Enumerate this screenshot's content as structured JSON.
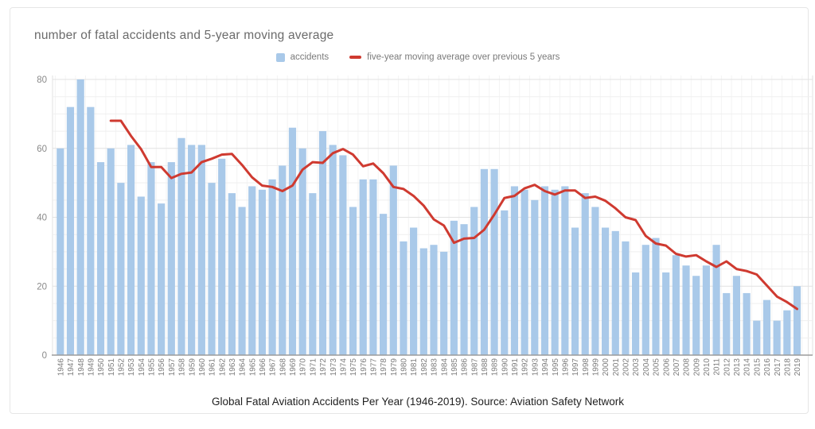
{
  "card": {
    "title": "number of fatal accidents and 5-year moving average",
    "caption": "Global Fatal Aviation Accidents Per Year (1946-2019). Source: Aviation Safety Network"
  },
  "legend": {
    "accidents_label": "accidents",
    "moving_average_label": "five-year moving average over previous 5 years"
  },
  "colors": {
    "bar": "#a9c9e9",
    "line": "#cf3a30",
    "title_text": "#6b6b6b",
    "legend_text": "#7a7a7a",
    "axis_text": "#8a8a8a",
    "caption_text": "#1f1f1f",
    "grid_major": "#e2e2e2",
    "grid_minor": "#efefef",
    "grid_vertical": "#f4f4f4",
    "axis_line": "#9b9b9b",
    "plot_edge": "#e0e0e0",
    "card_border": "#e6e6e6"
  },
  "chart_data": {
    "type": "bar",
    "title": "number of fatal accidents and 5-year moving average",
    "xlabel": "",
    "ylabel": "",
    "ylim": [
      0,
      80
    ],
    "yticks": [
      0,
      20,
      40,
      60,
      80
    ],
    "grid": {
      "horizontal_step": 5,
      "vertical_per_category": true
    },
    "legend_position": "top-center",
    "x_tick_rotation": -90,
    "categories": [
      "1946",
      "1947",
      "1948",
      "1949",
      "1950",
      "1951",
      "1952",
      "1953",
      "1954",
      "1955",
      "1956",
      "1957",
      "1958",
      "1959",
      "1960",
      "1961",
      "1962",
      "1963",
      "1964",
      "1965",
      "1966",
      "1967",
      "1968",
      "1969",
      "1970",
      "1971",
      "1972",
      "1973",
      "1974",
      "1975",
      "1976",
      "1977",
      "1978",
      "1979",
      "1980",
      "1981",
      "1982",
      "1983",
      "1984",
      "1985",
      "1986",
      "1987",
      "1988",
      "1989",
      "1990",
      "1991",
      "1992",
      "1993",
      "1994",
      "1995",
      "1996",
      "1997",
      "1998",
      "1999",
      "2000",
      "2001",
      "2002",
      "2003",
      "2004",
      "2005",
      "2006",
      "2007",
      "2008",
      "2009",
      "2010",
      "2011",
      "2012",
      "2013",
      "2014",
      "2015",
      "2016",
      "2017",
      "2018",
      "2019"
    ],
    "series": [
      {
        "name": "accidents",
        "type": "bar",
        "color": "#a9c9e9",
        "values": [
          60,
          72,
          80,
          72,
          56,
          60,
          50,
          61,
          46,
          56,
          44,
          56,
          63,
          61,
          61,
          50,
          57,
          47,
          43,
          49,
          48,
          51,
          55,
          66,
          60,
          47,
          65,
          61,
          58,
          43,
          51,
          51,
          41,
          55,
          33,
          37,
          31,
          32,
          30,
          39,
          38,
          43,
          54,
          54,
          42,
          49,
          48,
          45,
          49,
          48,
          49,
          37,
          47,
          43,
          37,
          36,
          33,
          24,
          32,
          34,
          24,
          29,
          26,
          23,
          26,
          32,
          18,
          23,
          18,
          10,
          16,
          10,
          13,
          20
        ]
      },
      {
        "name": "five-year moving average over previous 5 years",
        "type": "line",
        "color": "#cf3a30",
        "values": [
          null,
          null,
          null,
          null,
          null,
          68,
          68,
          63.6,
          59.8,
          54.6,
          54.6,
          51.4,
          52.6,
          53,
          56,
          57,
          58.2,
          58.4,
          55.2,
          51.6,
          49.2,
          48.8,
          47.6,
          49.2,
          53.8,
          56,
          55.8,
          58.6,
          59.8,
          58.2,
          54.8,
          55.6,
          52.8,
          48.8,
          48.2,
          46.2,
          43.4,
          39.4,
          37.6,
          32.6,
          33.8,
          34,
          36.4,
          40.8,
          45.6,
          46.2,
          48.4,
          49.4,
          47.6,
          46.6,
          47.8,
          47.8,
          45.6,
          46,
          44.8,
          42.6,
          40,
          39.2,
          34.6,
          32.4,
          31.8,
          29.4,
          28.6,
          29,
          27.2,
          25.6,
          27.2,
          25,
          24.4,
          23.4,
          20.2,
          17,
          15.4,
          13.4
        ]
      }
    ]
  }
}
